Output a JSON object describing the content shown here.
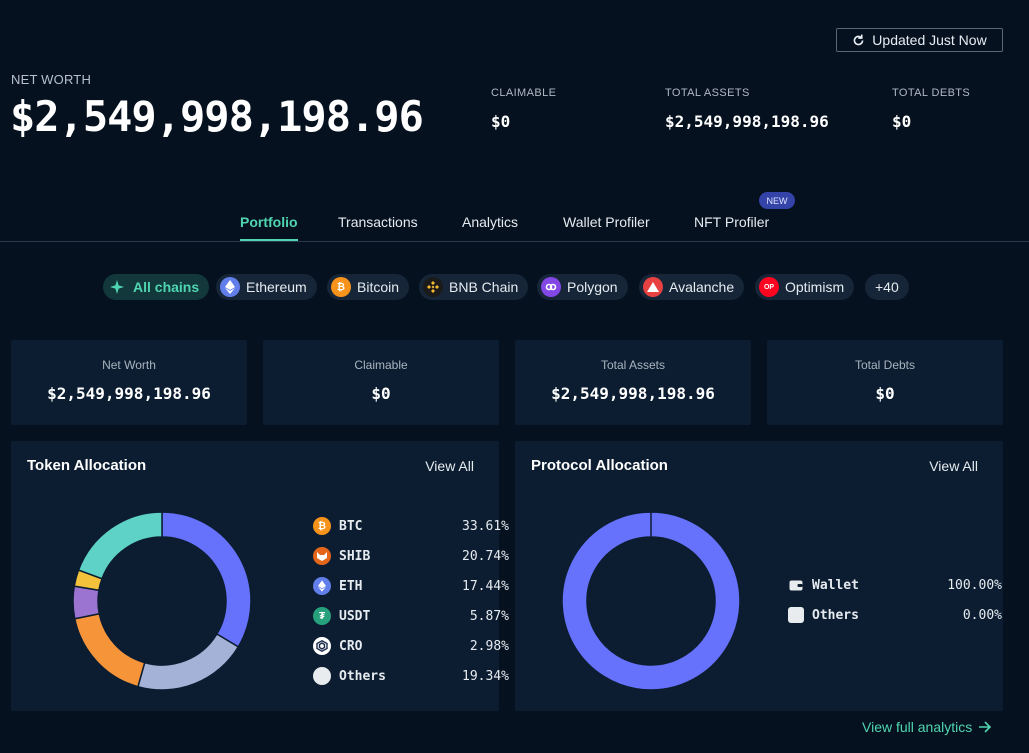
{
  "header": {
    "update_label": "Updated Just Now",
    "net_worth_label": "NET WORTH",
    "net_worth_value": "$2,549,998,198.96",
    "stats": [
      {
        "label": "CLAIMABLE",
        "value": "$0"
      },
      {
        "label": "TOTAL ASSETS",
        "value": "$2,549,998,198.96"
      },
      {
        "label": "TOTAL DEBTS",
        "value": "$0"
      }
    ]
  },
  "tabs": [
    {
      "label": "Portfolio",
      "active": true
    },
    {
      "label": "Transactions"
    },
    {
      "label": "Analytics"
    },
    {
      "label": "Wallet Profiler"
    },
    {
      "label": "NFT Profiler"
    }
  ],
  "new_badge": "NEW",
  "chains": [
    {
      "label": "All chains",
      "icon": "all-chains-icon",
      "color": "#4fd6b0"
    },
    {
      "label": "Ethereum",
      "icon": "ethereum-icon",
      "color": "#627eea"
    },
    {
      "label": "Bitcoin",
      "icon": "bitcoin-icon",
      "color": "#f7931a"
    },
    {
      "label": "BNB Chain",
      "icon": "bnb-icon",
      "color": "#f3ba2f"
    },
    {
      "label": "Polygon",
      "icon": "polygon-icon",
      "color": "#8247e5"
    },
    {
      "label": "Avalanche",
      "icon": "avalanche-icon",
      "color": "#e84142"
    },
    {
      "label": "Optimism",
      "icon": "optimism-icon",
      "color": "#ff0420"
    },
    {
      "label": "+40",
      "icon": "",
      "color": ""
    }
  ],
  "summary_cards": [
    {
      "label": "Net Worth",
      "value": "$2,549,998,198.96"
    },
    {
      "label": "Claimable",
      "value": "$0"
    },
    {
      "label": "Total Assets",
      "value": "$2,549,998,198.96"
    },
    {
      "label": "Total Debts",
      "value": "$0"
    }
  ],
  "token_allocation": {
    "title": "Token Allocation",
    "view_all": "View All",
    "items": [
      {
        "name": "BTC",
        "pct": "33.61%",
        "value": 33.61,
        "color": "#f7931a",
        "icon": "btc-icon"
      },
      {
        "name": "SHIB",
        "pct": "20.74%",
        "value": 20.74,
        "color": "#e4661b",
        "icon": "shib-icon"
      },
      {
        "name": "ETH",
        "pct": "17.44%",
        "value": 17.44,
        "color": "#627eea",
        "icon": "eth-icon"
      },
      {
        "name": "USDT",
        "pct": "5.87%",
        "value": 5.87,
        "color": "#26a17b",
        "icon": "usdt-icon"
      },
      {
        "name": "CRO",
        "pct": "2.98%",
        "value": 2.98,
        "color": "#1b2b4a",
        "icon": "cro-icon"
      },
      {
        "name": "Others",
        "pct": "19.34%",
        "value": 19.34,
        "color": "#e9ecef",
        "icon": "others-icon"
      }
    ],
    "ring_colors": [
      "#6672fb",
      "#a5b2d7",
      "#f6943a",
      "#9b73d1",
      "#f4c33b",
      "#5ed2c6"
    ]
  },
  "protocol_allocation": {
    "title": "Protocol Allocation",
    "view_all": "View All",
    "items": [
      {
        "name": "Wallet",
        "pct": "100.00%",
        "value": 100.0,
        "icon": "wallet-icon"
      },
      {
        "name": "Others",
        "pct": "0.00%",
        "value": 0.0,
        "icon": "others-icon"
      }
    ],
    "ring_color": "#6672fb"
  },
  "footer": {
    "link_label": "View full analytics"
  }
}
